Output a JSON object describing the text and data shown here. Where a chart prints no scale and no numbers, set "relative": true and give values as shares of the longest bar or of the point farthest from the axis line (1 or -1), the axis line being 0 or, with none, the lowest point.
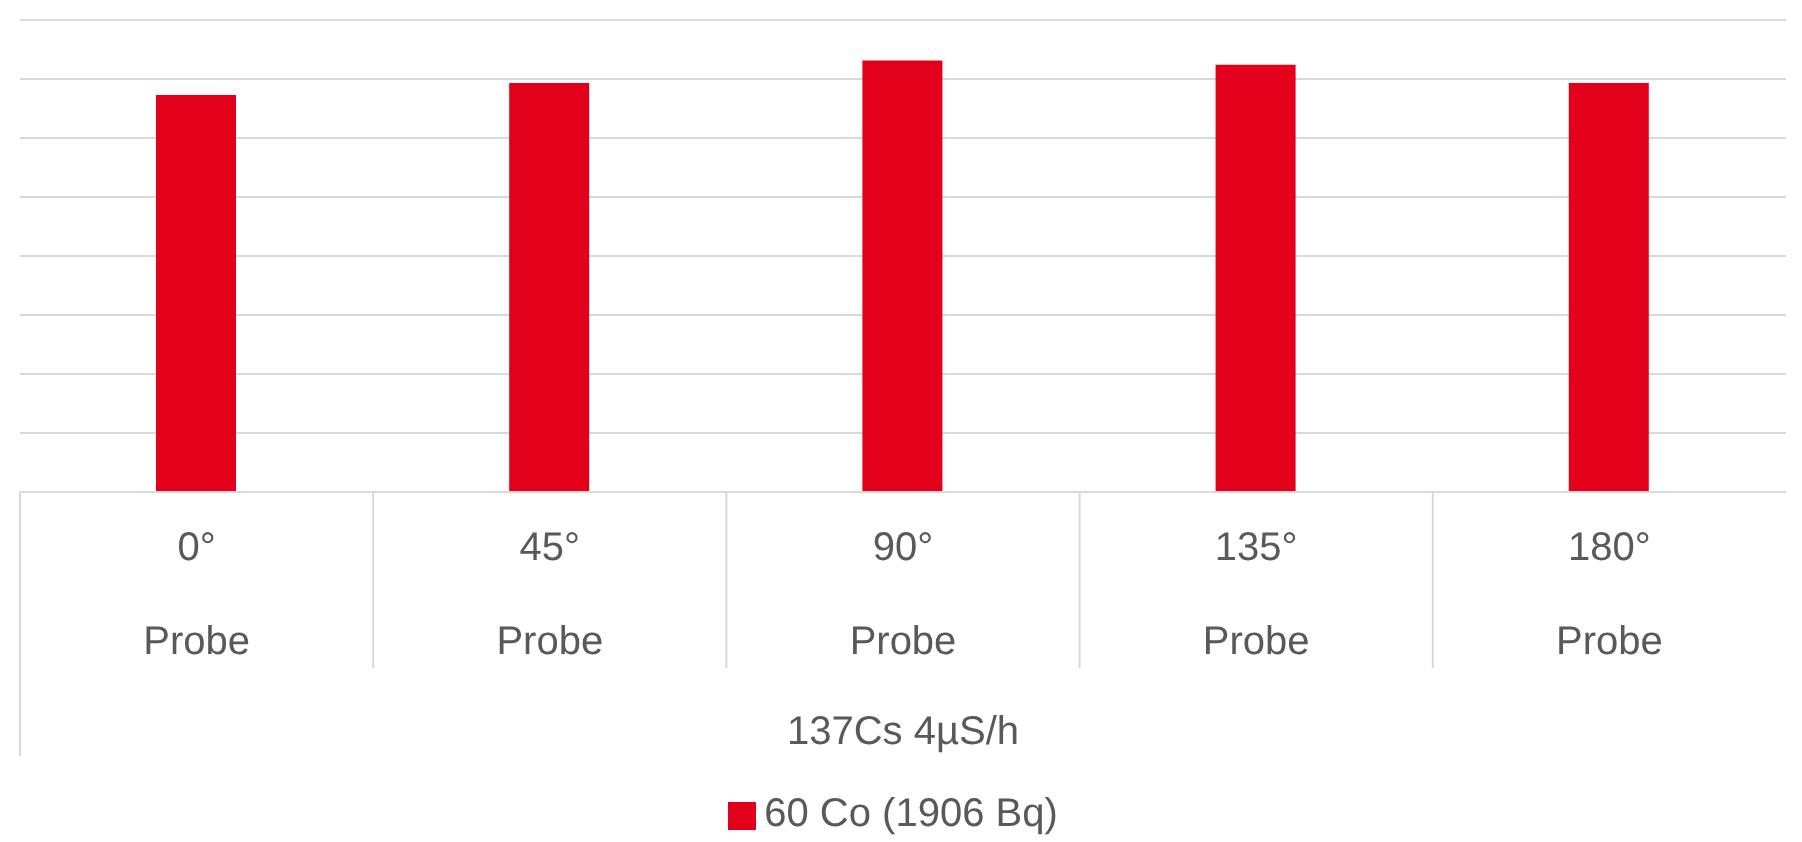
{
  "chart_data": {
    "type": "bar",
    "relative": true,
    "categories": [
      "0° Probe",
      "45° Probe",
      "90° Probe",
      "135° Probe",
      "180° Probe"
    ],
    "annotations": [
      "137Cs 4µS/h"
    ],
    "series": [
      {
        "name": "60 Co (1906 Bq)",
        "color": "#e2001a",
        "values": [
          0.92,
          0.948,
          1,
          0.99,
          0.948
        ]
      }
    ],
    "grid": "y",
    "legend": "bottom"
  }
}
